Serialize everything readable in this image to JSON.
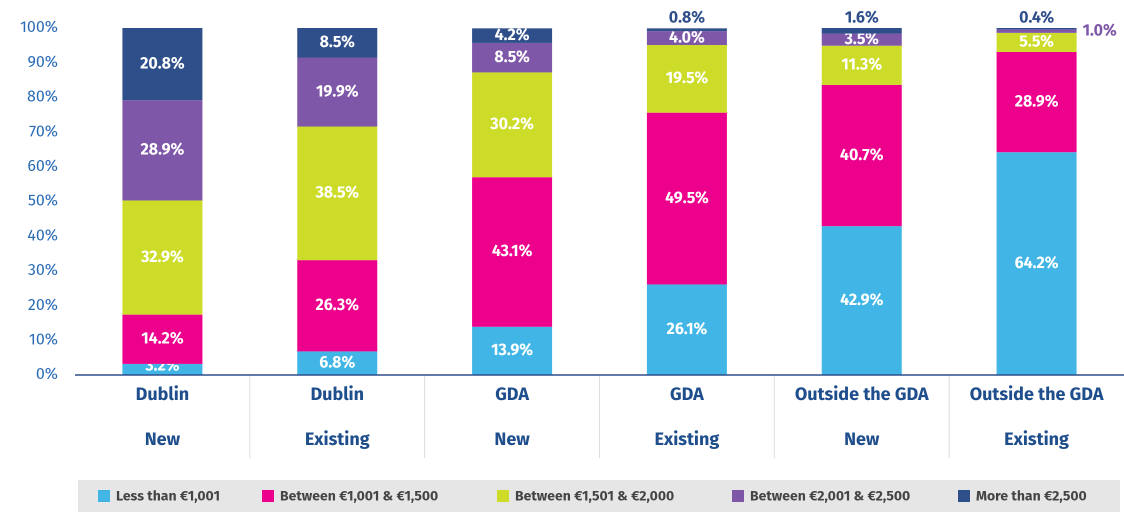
{
  "chart_data": {
    "type": "stacked_bar",
    "categories": [
      "Dublin",
      "Dublin",
      "GDA",
      "GDA",
      "Outside the GDA",
      "Outside the GDA"
    ],
    "subcategories": [
      "New",
      "Existing",
      "New",
      "Existing",
      "New",
      "Existing"
    ],
    "series": [
      {
        "name": "Less than €1,001",
        "color": "#41b6e6",
        "values": [
          3.2,
          6.8,
          13.9,
          26.1,
          42.9,
          64.2
        ],
        "value_labels": [
          "3.2%",
          "6.8%",
          "13.9%",
          "26.1%",
          "42.9%",
          "64.2%"
        ]
      },
      {
        "name": "Between €1,001 & €1,500",
        "color": "#ec008c",
        "values": [
          14.2,
          26.3,
          43.1,
          49.5,
          40.7,
          28.9
        ],
        "value_labels": [
          "14.2%",
          "26.3%",
          "43.1%",
          "49.5%",
          "40.7%",
          "28.9%"
        ]
      },
      {
        "name": "Between €1,501 & €2,000",
        "color": "#cddc29",
        "values": [
          32.9,
          38.5,
          30.2,
          19.5,
          11.3,
          5.5
        ],
        "value_labels": [
          "32.9%",
          "38.5%",
          "30.2%",
          "19.5%",
          "11.3%",
          "5.5%"
        ]
      },
      {
        "name": "Between €2,001 & €2,500",
        "color": "#7e57a8",
        "values": [
          28.9,
          19.9,
          8.5,
          4.0,
          3.5,
          1.0
        ],
        "value_labels": [
          "28.9%",
          "19.9%",
          "8.5%",
          "4.0%",
          "3.5%",
          "1.0%"
        ]
      },
      {
        "name": "More than €2,500",
        "color": "#2e4f8a",
        "values": [
          20.8,
          8.5,
          4.2,
          0.8,
          1.6,
          0.4
        ],
        "value_labels": [
          "20.8%",
          "8.5%",
          "4.2%",
          "0.8%",
          "1.6%",
          "0.4%"
        ]
      }
    ],
    "ylim": [
      0,
      100
    ],
    "yticks": [
      {
        "value": 0,
        "label": "0%"
      },
      {
        "value": 10,
        "label": "10%"
      },
      {
        "value": 20,
        "label": "20%"
      },
      {
        "value": 30,
        "label": "30%"
      },
      {
        "value": 40,
        "label": "40%"
      },
      {
        "value": 50,
        "label": "50%"
      },
      {
        "value": 60,
        "label": "60%"
      },
      {
        "value": 70,
        "label": "70%"
      },
      {
        "value": 80,
        "label": "80%"
      },
      {
        "value": 90,
        "label": "90%"
      },
      {
        "value": 100,
        "label": "100%"
      }
    ],
    "legend": "bottom"
  }
}
